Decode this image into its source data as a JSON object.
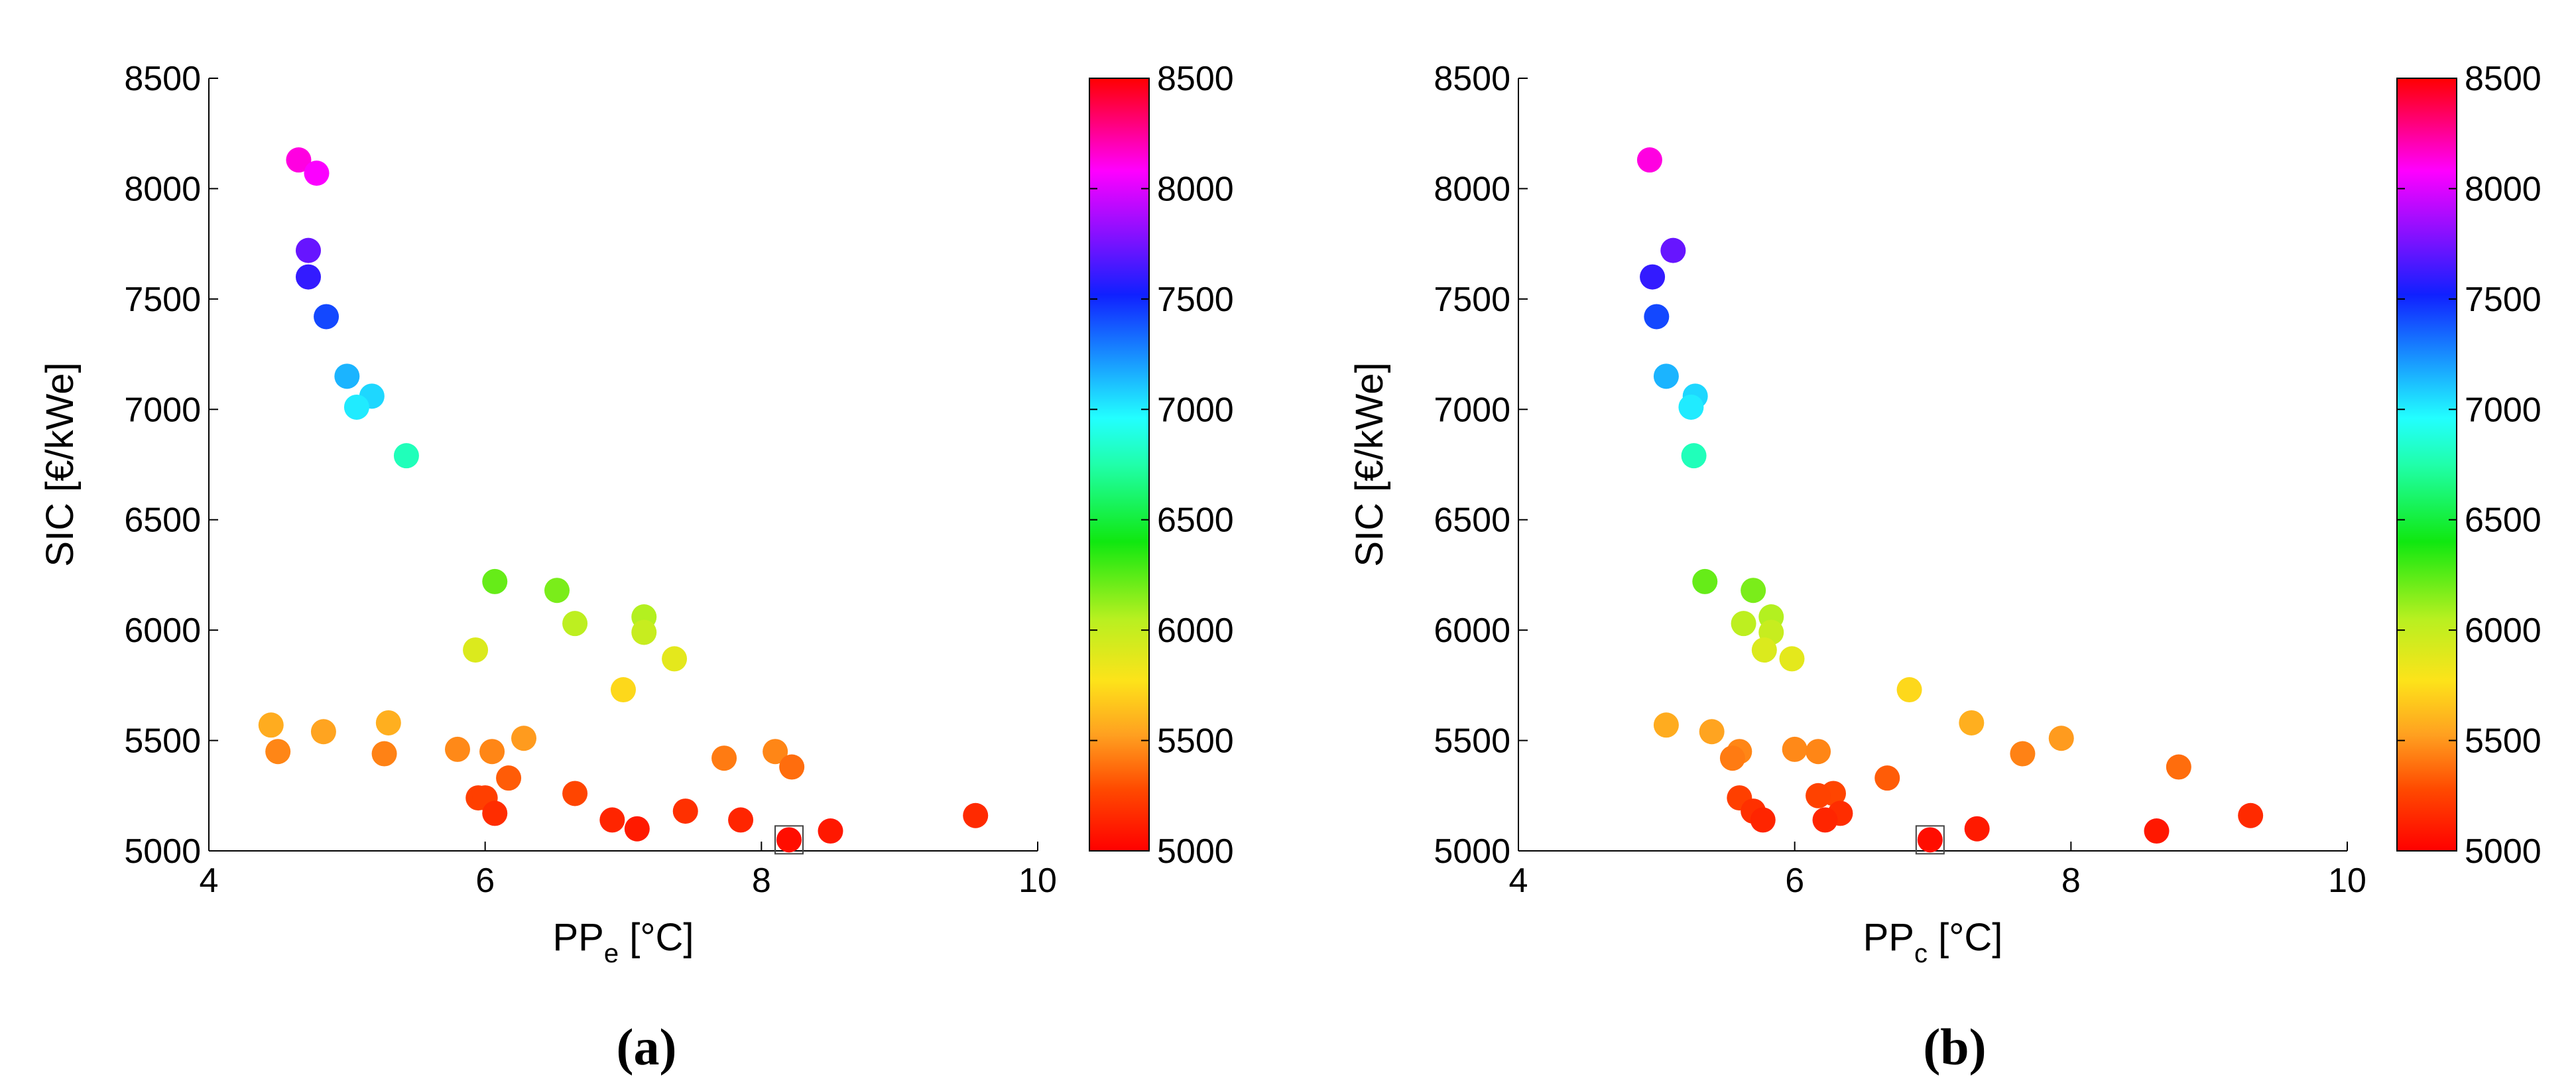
{
  "chart_data": [
    {
      "type": "scatter",
      "panel_label": "(a)",
      "xlabel_main": "PP",
      "xlabel_sub": "e",
      "xlabel_unit": " [°C]",
      "ylabel": "SIC [€/kWe]",
      "xlim": [
        4,
        10
      ],
      "ylim": [
        5000,
        8500
      ],
      "xticks": [
        "4",
        "6",
        "8",
        "10"
      ],
      "yticks": [
        "5000",
        "5500",
        "6000",
        "6500",
        "7000",
        "7500",
        "8000",
        "8500"
      ],
      "colorbar": {
        "range": [
          5000,
          8500
        ],
        "ticks": [
          "5000",
          "5500",
          "6000",
          "6500",
          "7000",
          "7500",
          "8000",
          "8500"
        ],
        "colormap": "red-yellow-green-cyan-blue-purple-magenta-red"
      },
      "highlighted_point": [
        8.2,
        5050
      ],
      "points": [
        {
          "x": 4.65,
          "y": 8130
        },
        {
          "x": 4.78,
          "y": 8070
        },
        {
          "x": 4.72,
          "y": 7720
        },
        {
          "x": 4.72,
          "y": 7600
        },
        {
          "x": 4.85,
          "y": 7420
        },
        {
          "x": 5.0,
          "y": 7150
        },
        {
          "x": 5.18,
          "y": 7060
        },
        {
          "x": 5.07,
          "y": 7010
        },
        {
          "x": 5.43,
          "y": 6790
        },
        {
          "x": 6.07,
          "y": 6220
        },
        {
          "x": 6.52,
          "y": 6180
        },
        {
          "x": 7.15,
          "y": 6060
        },
        {
          "x": 6.65,
          "y": 6030
        },
        {
          "x": 7.15,
          "y": 5990
        },
        {
          "x": 5.93,
          "y": 5910
        },
        {
          "x": 7.37,
          "y": 5870
        },
        {
          "x": 7.0,
          "y": 5730
        },
        {
          "x": 5.3,
          "y": 5580
        },
        {
          "x": 4.45,
          "y": 5570
        },
        {
          "x": 4.83,
          "y": 5540
        },
        {
          "x": 6.28,
          "y": 5510
        },
        {
          "x": 5.8,
          "y": 5460
        },
        {
          "x": 4.5,
          "y": 5450
        },
        {
          "x": 8.1,
          "y": 5450
        },
        {
          "x": 6.05,
          "y": 5450
        },
        {
          "x": 5.27,
          "y": 5440
        },
        {
          "x": 7.73,
          "y": 5420
        },
        {
          "x": 8.22,
          "y": 5380
        },
        {
          "x": 6.17,
          "y": 5330
        },
        {
          "x": 6.65,
          "y": 5260
        },
        {
          "x": 5.95,
          "y": 5240
        },
        {
          "x": 6.0,
          "y": 5240
        },
        {
          "x": 7.45,
          "y": 5180
        },
        {
          "x": 6.07,
          "y": 5170
        },
        {
          "x": 9.55,
          "y": 5160
        },
        {
          "x": 6.92,
          "y": 5140
        },
        {
          "x": 7.85,
          "y": 5140
        },
        {
          "x": 7.1,
          "y": 5100
        },
        {
          "x": 8.5,
          "y": 5090
        },
        {
          "x": 8.2,
          "y": 5050
        }
      ]
    },
    {
      "type": "scatter",
      "panel_label": "(b)",
      "xlabel_main": "PP",
      "xlabel_sub": "c",
      "xlabel_unit": " [°C]",
      "ylabel": "SIC [€/kWe]",
      "xlim": [
        4,
        10
      ],
      "ylim": [
        5000,
        8500
      ],
      "xticks": [
        "4",
        "6",
        "8",
        "10"
      ],
      "yticks": [
        "5000",
        "5500",
        "6000",
        "6500",
        "7000",
        "7500",
        "8000",
        "8500"
      ],
      "colorbar": {
        "range": [
          5000,
          8500
        ],
        "ticks": [
          "5000",
          "5500",
          "6000",
          "6500",
          "7000",
          "7500",
          "8000",
          "8500"
        ],
        "colormap": "red-yellow-green-cyan-blue-purple-magenta-red"
      },
      "highlighted_point": [
        6.98,
        5050
      ],
      "points": [
        {
          "x": 4.95,
          "y": 8130
        },
        {
          "x": 5.12,
          "y": 7720
        },
        {
          "x": 4.97,
          "y": 7600
        },
        {
          "x": 5.0,
          "y": 7420
        },
        {
          "x": 5.07,
          "y": 7150
        },
        {
          "x": 5.28,
          "y": 7060
        },
        {
          "x": 5.25,
          "y": 7010
        },
        {
          "x": 5.27,
          "y": 6790
        },
        {
          "x": 5.35,
          "y": 6220
        },
        {
          "x": 5.7,
          "y": 6180
        },
        {
          "x": 5.83,
          "y": 6060
        },
        {
          "x": 5.63,
          "y": 6030
        },
        {
          "x": 5.83,
          "y": 5990
        },
        {
          "x": 5.78,
          "y": 5910
        },
        {
          "x": 5.98,
          "y": 5870
        },
        {
          "x": 6.83,
          "y": 5730
        },
        {
          "x": 7.28,
          "y": 5580
        },
        {
          "x": 5.07,
          "y": 5570
        },
        {
          "x": 5.4,
          "y": 5540
        },
        {
          "x": 7.93,
          "y": 5510
        },
        {
          "x": 6.0,
          "y": 5460
        },
        {
          "x": 5.6,
          "y": 5450
        },
        {
          "x": 6.17,
          "y": 5450
        },
        {
          "x": 7.65,
          "y": 5440
        },
        {
          "x": 5.55,
          "y": 5420
        },
        {
          "x": 8.78,
          "y": 5380
        },
        {
          "x": 6.67,
          "y": 5330
        },
        {
          "x": 6.28,
          "y": 5260
        },
        {
          "x": 6.17,
          "y": 5250
        },
        {
          "x": 5.6,
          "y": 5240
        },
        {
          "x": 5.7,
          "y": 5180
        },
        {
          "x": 6.33,
          "y": 5170
        },
        {
          "x": 9.3,
          "y": 5160
        },
        {
          "x": 5.77,
          "y": 5140
        },
        {
          "x": 6.22,
          "y": 5140
        },
        {
          "x": 7.32,
          "y": 5100
        },
        {
          "x": 8.62,
          "y": 5090
        },
        {
          "x": 6.98,
          "y": 5050
        }
      ]
    }
  ]
}
